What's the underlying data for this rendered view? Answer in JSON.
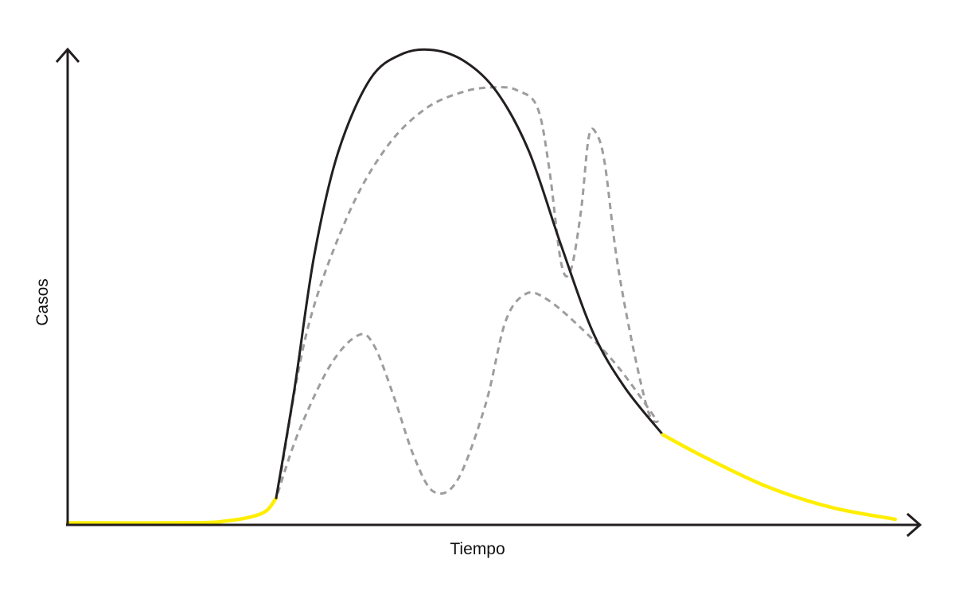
{
  "chart_data": {
    "type": "line",
    "title": "",
    "xlabel": "Tiempo",
    "ylabel": "Casos",
    "x_ticks": [],
    "y_ticks": [],
    "grid": false,
    "legend": "none",
    "axis_color": "#231f20",
    "series": [
      {
        "role": "yellow-tail-left",
        "style": "solid",
        "color": "#ffee00",
        "points": [
          [
            0,
            0.5
          ],
          [
            160,
            0.6
          ],
          [
            200,
            3
          ],
          [
            230,
            8
          ],
          [
            250,
            16
          ],
          [
            262,
            32
          ]
        ]
      },
      {
        "role": "main-curve",
        "style": "solid",
        "color": "#231f20",
        "points": [
          [
            262,
            32
          ],
          [
            285,
            170
          ],
          [
            310,
            340
          ],
          [
            340,
            470
          ],
          [
            380,
            562
          ],
          [
            420,
            594
          ],
          [
            460,
            599
          ],
          [
            500,
            584
          ],
          [
            540,
            545
          ],
          [
            580,
            470
          ],
          [
            620,
            352
          ],
          [
            660,
            242
          ],
          [
            700,
            172
          ],
          [
            748,
            112
          ]
        ]
      },
      {
        "role": "yellow-tail-right",
        "style": "solid",
        "color": "#ffee00",
        "points": [
          [
            748,
            112
          ],
          [
            800,
            84
          ],
          [
            880,
            46
          ],
          [
            960,
            20
          ],
          [
            1040,
            5
          ]
        ]
      },
      {
        "role": "alternative-high",
        "style": "dashed",
        "color": "#9d9d9d",
        "points": [
          [
            264,
            38
          ],
          [
            300,
            240
          ],
          [
            350,
            385
          ],
          [
            400,
            475
          ],
          [
            450,
            525
          ],
          [
            500,
            547
          ],
          [
            540,
            552
          ],
          [
            565,
            548
          ],
          [
            590,
            527
          ],
          [
            605,
            450
          ],
          [
            620,
            330
          ],
          [
            632,
            320
          ],
          [
            645,
            395
          ],
          [
            655,
            490
          ],
          [
            665,
            492
          ],
          [
            675,
            455
          ],
          [
            690,
            335
          ],
          [
            710,
            225
          ],
          [
            730,
            140
          ],
          [
            742,
            128
          ]
        ]
      },
      {
        "role": "alternative-low",
        "style": "dashed",
        "color": "#9d9d9d",
        "points": [
          [
            264,
            38
          ],
          [
            290,
            115
          ],
          [
            330,
            200
          ],
          [
            365,
            238
          ],
          [
            385,
            225
          ],
          [
            410,
            160
          ],
          [
            435,
            85
          ],
          [
            460,
            40
          ],
          [
            490,
            55
          ],
          [
            525,
            150
          ],
          [
            550,
            255
          ],
          [
            575,
            290
          ],
          [
            600,
            285
          ],
          [
            640,
            252
          ],
          [
            690,
            200
          ],
          [
            742,
            128
          ]
        ]
      }
    ]
  }
}
